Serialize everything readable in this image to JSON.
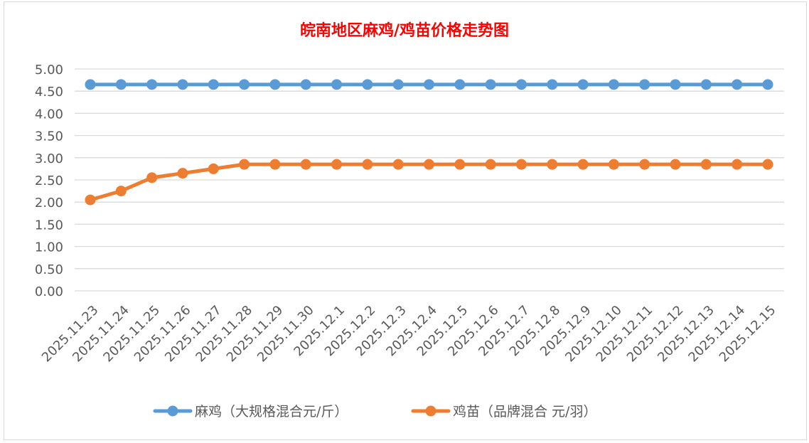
{
  "chart_data": {
    "type": "line",
    "title": "皖南地区麻鸡/鸡苗价格走势图",
    "title_color": "#ff0000",
    "xlabel": "",
    "ylabel": "",
    "ylim": [
      0,
      5
    ],
    "yticks": [
      "0.00",
      "0.50",
      "1.00",
      "1.50",
      "2.00",
      "2.50",
      "3.00",
      "3.50",
      "4.00",
      "4.50",
      "5.00"
    ],
    "grid": true,
    "legend_position": "bottom",
    "categories": [
      "2025.11.23",
      "2025.11.24",
      "2025.11.25",
      "2025.11.26",
      "2025.11.27",
      "2025.11.28",
      "2025.11.29",
      "2025.11.30",
      "2025.12.1",
      "2025.12.2",
      "2025.12.3",
      "2025.12.4",
      "2025.12.5",
      "2025.12.6",
      "2025.12.7",
      "2025.12.8",
      "2025.12.9",
      "2025.12.10",
      "2025.12.11",
      "2025.12.12",
      "2025.12.13",
      "2025.12.14",
      "2025.12.15"
    ],
    "series": [
      {
        "name": "麻鸡（大规格混合元/斤）",
        "color": "#5b9bd5",
        "values": [
          4.65,
          4.65,
          4.65,
          4.65,
          4.65,
          4.65,
          4.65,
          4.65,
          4.65,
          4.65,
          4.65,
          4.65,
          4.65,
          4.65,
          4.65,
          4.65,
          4.65,
          4.65,
          4.65,
          4.65,
          4.65,
          4.65,
          4.65
        ]
      },
      {
        "name": "鸡苗（品牌混合 元/羽）",
        "color": "#ed7d31",
        "values": [
          2.05,
          2.25,
          2.55,
          2.65,
          2.75,
          2.85,
          2.85,
          2.85,
          2.85,
          2.85,
          2.85,
          2.85,
          2.85,
          2.85,
          2.85,
          2.85,
          2.85,
          2.85,
          2.85,
          2.85,
          2.85,
          2.85,
          2.85
        ]
      }
    ]
  }
}
